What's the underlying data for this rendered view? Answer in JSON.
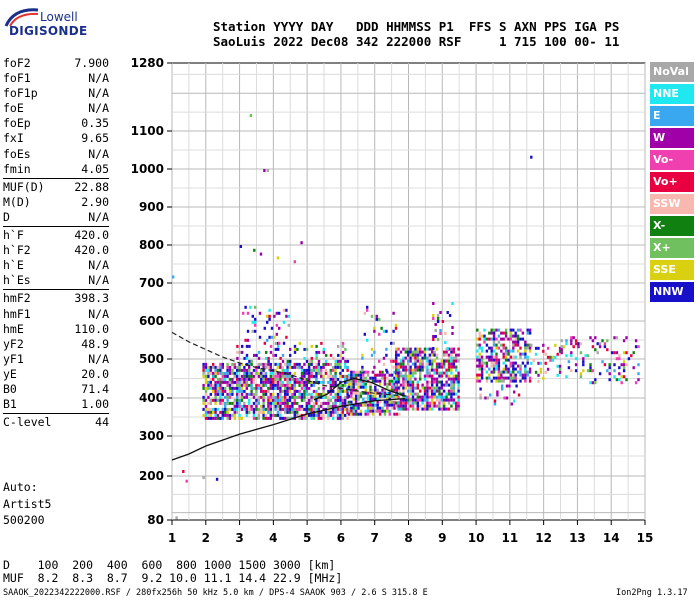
{
  "logo": {
    "line1": "Lowell",
    "line2": "DIGISONDE"
  },
  "header": {
    "line1": "Station YYYY DAY   DDD HHMMSS P1  FFS S AXN PPS IGA PS",
    "line2": "SaoLuis 2022 Dec08 342 222000 RSF     1 715 100 00- 11"
  },
  "params": [
    {
      "label": "foF2",
      "value": "7.900"
    },
    {
      "label": "foF1",
      "value": "N/A"
    },
    {
      "label": "foF1p",
      "value": "N/A"
    },
    {
      "label": "foE",
      "value": "N/A"
    },
    {
      "label": "foEp",
      "value": "0.35"
    },
    {
      "label": "fxI",
      "value": "9.65"
    },
    {
      "label": "foEs",
      "value": "N/A"
    },
    {
      "label": "fmin",
      "value": "4.05"
    },
    {
      "label": "MUF(D)",
      "value": "22.88"
    },
    {
      "label": "M(D)",
      "value": "2.90"
    },
    {
      "label": "D",
      "value": "N/A"
    },
    {
      "label": "h`F",
      "value": "420.0"
    },
    {
      "label": "h`F2",
      "value": "420.0"
    },
    {
      "label": "h`E",
      "value": "N/A"
    },
    {
      "label": "h`Es",
      "value": "N/A"
    },
    {
      "label": "hmF2",
      "value": "398.3"
    },
    {
      "label": "hmF1",
      "value": "N/A"
    },
    {
      "label": "hmE",
      "value": "110.0"
    },
    {
      "label": "yF2",
      "value": "48.9"
    },
    {
      "label": "yF1",
      "value": "N/A"
    },
    {
      "label": "yE",
      "value": "20.0"
    },
    {
      "label": "B0",
      "value": "71.4"
    },
    {
      "label": "B1",
      "value": "1.00"
    },
    {
      "label": "C-level",
      "value": "44"
    }
  ],
  "auto": {
    "line1": "Auto:",
    "line2": "Artist5",
    "line3": "500200"
  },
  "legend": [
    {
      "label": "NoVal",
      "color": "#a8a8a8"
    },
    {
      "label": "NNE",
      "color": "#20e8f0"
    },
    {
      "label": "E",
      "color": "#3aa8f0"
    },
    {
      "label": "W",
      "color": "#a000a8"
    },
    {
      "label": "Vo-",
      "color": "#f040b0"
    },
    {
      "label": "Vo+",
      "color": "#e80040"
    },
    {
      "label": "SSW",
      "color": "#f8b8b0"
    },
    {
      "label": "X-",
      "color": "#108010"
    },
    {
      "label": "X+",
      "color": "#70c060"
    },
    {
      "label": "SSE",
      "color": "#d8d010"
    },
    {
      "label": "NNW",
      "color": "#1810c8"
    }
  ],
  "footer": {
    "d_row": "D    100  200  400  600  800 1000 1500 3000 [km]",
    "muf_row": "MUF  8.2  8.3  8.7  9.2 10.0 11.1 14.4 22.9 [MHz]",
    "file_info": "SAAOK_2022342222000.RSF / 280fx256h 50 kHz 5.0 km / DPS-4 SAAOK 903 / 2.6 S 315.8 E",
    "version": "Ion2Png 1.3.17"
  },
  "chart_data": {
    "type": "scatter",
    "xlim": [
      1,
      15
    ],
    "ylim": [
      80,
      1280
    ],
    "x_ticks": [
      "1",
      "2",
      "3",
      "4",
      "5",
      "6",
      "7",
      "8",
      "9",
      "10",
      "11",
      "12",
      "13",
      "14",
      "15"
    ],
    "y_ticks": [
      "80",
      "200",
      "300",
      "400",
      "500",
      "600",
      "700",
      "800",
      "900",
      "1000",
      "1100",
      "1280"
    ],
    "y_tick_values": [
      80,
      200,
      300,
      400,
      500,
      600,
      700,
      800,
      900,
      1000,
      1100,
      1280
    ],
    "grid": true,
    "legend_position": "right",
    "echo_clusters": [
      {
        "x_range": [
          1.9,
          6.2
        ],
        "y_range": [
          350,
          490
        ],
        "density": 0.72
      },
      {
        "x_range": [
          2.9,
          6.2
        ],
        "y_range": [
          490,
          545
        ],
        "density": 0.25
      },
      {
        "x_range": [
          3.0,
          4.5
        ],
        "y_range": [
          545,
          640
        ],
        "density": 0.12
      },
      {
        "x_range": [
          6.2,
          7.7
        ],
        "y_range": [
          355,
          470
        ],
        "density": 0.75
      },
      {
        "x_range": [
          6.6,
          7.6
        ],
        "y_range": [
          470,
          640
        ],
        "density": 0.1
      },
      {
        "x_range": [
          7.6,
          9.5
        ],
        "y_range": [
          370,
          530
        ],
        "density": 0.7
      },
      {
        "x_range": [
          8.7,
          9.3
        ],
        "y_range": [
          530,
          650
        ],
        "density": 0.2
      },
      {
        "x_range": [
          10.0,
          11.6
        ],
        "y_range": [
          445,
          580
        ],
        "density": 0.62
      },
      {
        "x_range": [
          10.1,
          11.3
        ],
        "y_range": [
          385,
          450
        ],
        "density": 0.12
      },
      {
        "x_range": [
          11.6,
          12.5
        ],
        "y_range": [
          440,
          540
        ],
        "density": 0.2
      },
      {
        "x_range": [
          12.5,
          14.8
        ],
        "y_range": [
          440,
          560
        ],
        "density": 0.18
      }
    ],
    "isolated_points": [
      [
        1.0,
        720
      ],
      [
        1.3,
        215
      ],
      [
        1.9,
        200
      ],
      [
        2.3,
        195
      ],
      [
        3.3,
        1145
      ],
      [
        3.7,
        1000
      ],
      [
        3.8,
        1000
      ],
      [
        11.6,
        1035
      ],
      [
        3.6,
        780
      ],
      [
        4.1,
        770
      ],
      [
        4.8,
        810
      ],
      [
        3.0,
        800
      ],
      [
        3.4,
        790
      ],
      [
        4.6,
        760
      ],
      [
        1.1,
        90
      ],
      [
        1.4,
        190
      ]
    ],
    "profile": {
      "lower_curve": [
        [
          1,
          240
        ],
        [
          1.5,
          255
        ],
        [
          2,
          275
        ],
        [
          3,
          305
        ],
        [
          4,
          330
        ],
        [
          5,
          358
        ],
        [
          6,
          378
        ],
        [
          7,
          393
        ],
        [
          7.9,
          398.3
        ]
      ],
      "trace_curve": [
        [
          5.2,
          395
        ],
        [
          5.6,
          410
        ],
        [
          6.0,
          440
        ],
        [
          6.4,
          450
        ],
        [
          6.9,
          440
        ],
        [
          7.4,
          420
        ],
        [
          7.9,
          405
        ]
      ],
      "extrapolation_dashed": [
        [
          1,
          570
        ],
        [
          1.5,
          545
        ],
        [
          2,
          525
        ],
        [
          2.5,
          505
        ],
        [
          3,
          490
        ],
        [
          3.5,
          478
        ],
        [
          4,
          470
        ],
        [
          4.5,
          460
        ],
        [
          5,
          445
        ],
        [
          5.5,
          432
        ],
        [
          6,
          425
        ],
        [
          6.5,
          418
        ],
        [
          7,
          412
        ],
        [
          7.5,
          408
        ],
        [
          8,
          405
        ]
      ]
    }
  }
}
